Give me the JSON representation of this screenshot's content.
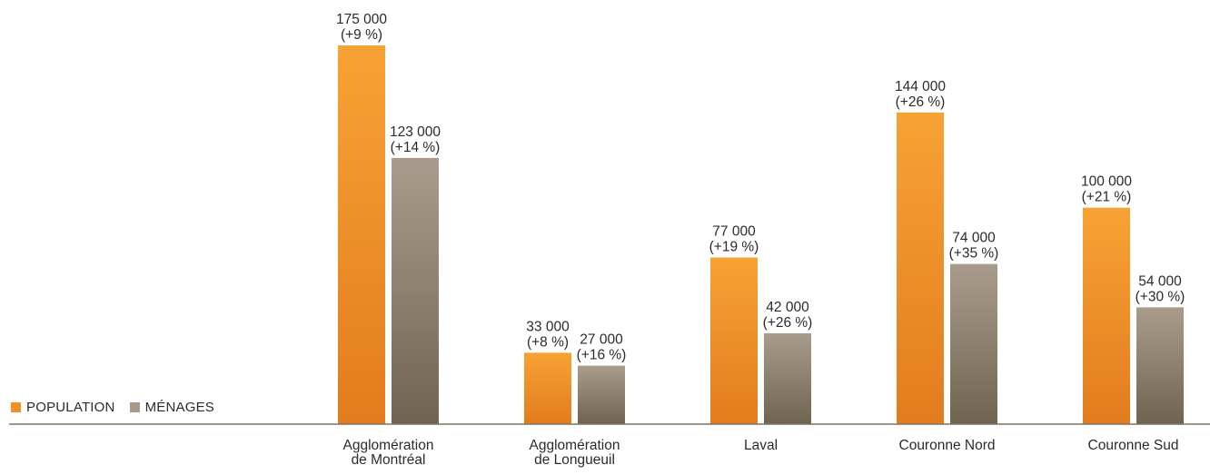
{
  "chart_data": {
    "type": "bar",
    "categories": [
      [
        "Agglomération",
        "de Montréal"
      ],
      [
        "Agglomération",
        "de Longueuil"
      ],
      [
        "Laval"
      ],
      [
        "Couronne Nord"
      ],
      [
        "Couronne Sud"
      ]
    ],
    "series": [
      {
        "name": "POPULATION",
        "color": "#f0902a",
        "values": [
          175000,
          33000,
          77000,
          144000,
          100000
        ],
        "labels": [
          [
            "175 000",
            "(+9 %)"
          ],
          [
            "33 000",
            "(+8 %)"
          ],
          [
            "77 000",
            "(+19 %)"
          ],
          [
            "144 000",
            "(+26 %)"
          ],
          [
            "100 000",
            "(+21 %)"
          ]
        ]
      },
      {
        "name": "MÉNAGES",
        "color": "#8f8270",
        "values": [
          123000,
          27000,
          42000,
          74000,
          54000
        ],
        "labels": [
          [
            "123 000",
            "(+14 %)"
          ],
          [
            "27 000",
            "(+16 %)"
          ],
          [
            "42 000",
            "(+26 %)"
          ],
          [
            "74 000",
            "(+35 %)"
          ],
          [
            "54 000",
            "(+30 %)"
          ]
        ]
      }
    ],
    "ylim": [
      0,
      175000
    ],
    "grid": false,
    "legend_position": "bottom-left"
  },
  "legend": {
    "population_label": "POPULATION",
    "menages_label": "MÉNAGES"
  }
}
